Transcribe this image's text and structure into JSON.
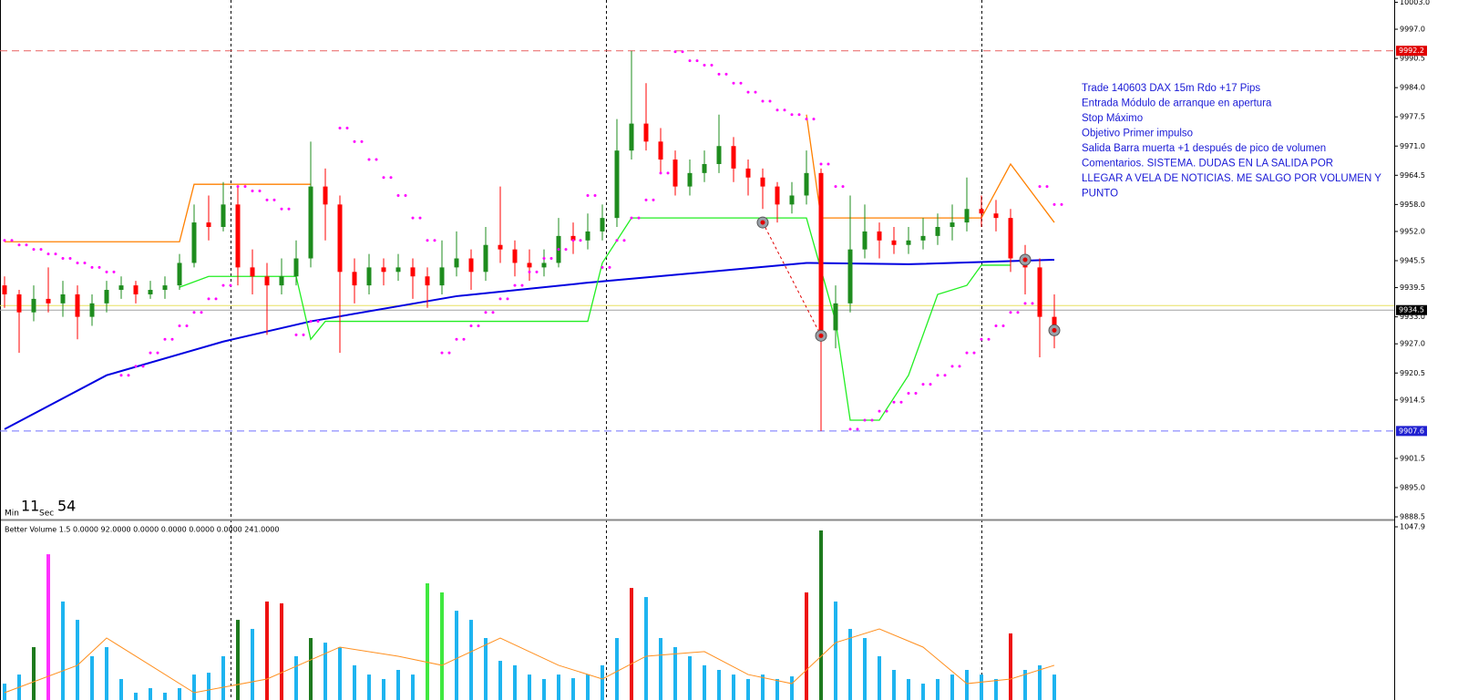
{
  "chart_data": {
    "type": "candlestick",
    "up_color": "#1e8c1e",
    "down_color": "#ff0000",
    "ylim": [
      9887.9,
      10003.5
    ],
    "yticks": [
      {
        "value": 10003,
        "label": "10003.0"
      },
      {
        "value": 9997,
        "label": "9997.0"
      },
      9990.5,
      {
        "value": 9984,
        "label": "9984.0"
      },
      9977.5,
      {
        "value": 9971,
        "label": "9971.0"
      },
      9964.5,
      {
        "value": 9958,
        "label": "9958.0"
      },
      {
        "value": 9952,
        "label": "9952.0"
      },
      9945.5,
      9939.5,
      {
        "value": 9933,
        "label": "9933.0"
      },
      {
        "value": 9927,
        "label": "9927.0"
      },
      9920.5,
      9914.5,
      9901.5,
      {
        "value": 9895,
        "label": "9895.0"
      },
      9888.5
    ],
    "ohlc": [
      [
        9940,
        9942,
        9935,
        9938
      ],
      [
        9938,
        9939,
        9925,
        9934
      ],
      [
        9934,
        9940,
        9932,
        9937
      ],
      [
        9937,
        9944,
        9934,
        9936
      ],
      [
        9936,
        9941,
        9933,
        9938
      ],
      [
        9938,
        9940,
        9928,
        9933
      ],
      [
        9933,
        9938,
        9931,
        9936
      ],
      [
        9936,
        9941,
        9934,
        9939
      ],
      [
        9939,
        9942,
        9937,
        9940
      ],
      [
        9940,
        9941,
        9936,
        9938
      ],
      [
        9938,
        9941,
        9937,
        9939
      ],
      [
        9939,
        9942,
        9937,
        9940
      ],
      [
        9940,
        9947,
        9939,
        9945
      ],
      [
        9945,
        9958,
        9944,
        9954
      ],
      [
        9954,
        9960,
        9950,
        9953
      ],
      [
        9953,
        9963,
        9952,
        9958
      ],
      [
        9958,
        9962,
        9940,
        9944
      ],
      [
        9944,
        9948,
        9938,
        9942
      ],
      [
        9942,
        9945,
        9929,
        9940
      ],
      [
        9940,
        9946,
        9938,
        9942
      ],
      [
        9942,
        9950,
        9940,
        9946
      ],
      [
        9946,
        9972,
        9944,
        9962
      ],
      [
        9962,
        9966,
        9950,
        9958
      ],
      [
        9958,
        9960,
        9925,
        9943
      ],
      [
        9943,
        9946,
        9936,
        9940
      ],
      [
        9940,
        9947,
        9938,
        9944
      ],
      [
        9944,
        9946,
        9940,
        9943
      ],
      [
        9943,
        9947,
        9941,
        9944
      ],
      [
        9944,
        9946,
        9937,
        9942
      ],
      [
        9942,
        9944,
        9935,
        9940
      ],
      [
        9940,
        9950,
        9938,
        9944
      ],
      [
        9944,
        9952,
        9942,
        9946
      ],
      [
        9946,
        9948,
        9939,
        9943
      ],
      [
        9943,
        9953,
        9941,
        9949
      ],
      [
        9949,
        9962,
        9945,
        9948
      ],
      [
        9948,
        9950,
        9942,
        9945
      ],
      [
        9945,
        9948,
        9941,
        9944
      ],
      [
        9944,
        9948,
        9942,
        9945
      ],
      [
        9945,
        9955,
        9944,
        9951
      ],
      [
        9951,
        9954,
        9947,
        9950
      ],
      [
        9950,
        9956,
        9948,
        9952
      ],
      [
        9952,
        9958,
        9950,
        9955
      ],
      [
        9955,
        9977,
        9953,
        9970
      ],
      [
        9970,
        9992.2,
        9968,
        9976
      ],
      [
        9976,
        9985,
        9970,
        9972
      ],
      [
        9972,
        9975,
        9965,
        9968
      ],
      [
        9968,
        9970,
        9960,
        9962
      ],
      [
        9962,
        9968,
        9960,
        9965
      ],
      [
        9965,
        9970,
        9963,
        9967
      ],
      [
        9967,
        9978,
        9965,
        9971
      ],
      [
        9971,
        9973,
        9963,
        9966
      ],
      [
        9966,
        9968,
        9960,
        9964
      ],
      [
        9964,
        9966,
        9957,
        9962
      ],
      [
        9962,
        9963,
        9954,
        9958
      ],
      [
        9958,
        9963,
        9956,
        9960
      ],
      [
        9960,
        9970,
        9958,
        9965
      ],
      [
        9965,
        9966,
        9907.6,
        9930
      ],
      [
        9930,
        9940,
        9926,
        9936
      ],
      [
        9936,
        9960,
        9934,
        9948
      ],
      [
        9948,
        9958,
        9946,
        9952
      ],
      [
        9952,
        9954,
        9946,
        9950
      ],
      [
        9950,
        9953,
        9947,
        9949
      ],
      [
        9949,
        9953,
        9947,
        9950
      ],
      [
        9950,
        9955,
        9948,
        9951
      ],
      [
        9951,
        9956,
        9949,
        9953
      ],
      [
        9953,
        9958,
        9950,
        9954
      ],
      [
        9954,
        9964,
        9952,
        9957
      ],
      [
        9957,
        9960,
        9953,
        9956
      ],
      [
        9956,
        9959,
        9952,
        9955
      ],
      [
        9955,
        9957,
        9943,
        9946
      ],
      [
        9946,
        9949,
        9938,
        9944
      ],
      [
        9944,
        9946,
        9924,
        9933
      ],
      [
        9933,
        9938,
        9926,
        9931
      ]
    ],
    "overlays": [
      {
        "color": "#0000e0",
        "width": 2,
        "x": [
          0,
          7,
          15,
          21,
          31,
          40,
          55,
          62,
          72
        ],
        "values": [
          9908,
          9920,
          9927.5,
          9932,
          9937.6,
          9940.6,
          9945,
          9944.7,
          9945.7
        ]
      },
      {
        "color": "#ff8000",
        "width": 1.3,
        "x": [
          0,
          12,
          13,
          15,
          21,
          22,
          55,
          56,
          58,
          67,
          69,
          72
        ],
        "values": [
          9949.7,
          9949.7,
          9962.5,
          9962.5,
          9962.5,
          null,
          9978,
          9955,
          9955,
          9955,
          9967,
          9954
        ]
      },
      {
        "color": "#22ee22",
        "width": 1.3,
        "x": [
          12,
          14,
          20,
          21,
          22,
          40,
          41,
          43,
          55,
          57,
          58,
          60,
          62,
          64,
          66,
          67,
          69
        ],
        "values": [
          9939.6,
          9942,
          9942,
          9928,
          9932,
          9932,
          9945,
          9955,
          9955,
          9932,
          9910,
          9910,
          9920,
          9938,
          9940,
          9944.5,
          9944.5
        ]
      }
    ],
    "sar": {
      "color": "#ff00ff",
      "values": [
        9950,
        9949,
        9948,
        9947,
        9946,
        9945,
        9944,
        9943,
        9920,
        9922,
        9925,
        9928,
        9931,
        9934,
        9937,
        9940,
        9962,
        9961,
        9959,
        9957,
        9929,
        9932,
        null,
        9975,
        9972,
        9968,
        9964,
        9960,
        9955,
        9950,
        9925,
        9928,
        9931,
        9934,
        9937,
        9940,
        9943,
        9946,
        9948,
        9950,
        9960,
        9944,
        9950,
        9955,
        9959,
        9965,
        9992,
        9990,
        9989,
        9987,
        9985,
        9983,
        9981,
        9979,
        9978,
        9977,
        9967,
        9962,
        9908,
        9910,
        9912,
        9914,
        9916,
        9918,
        9920,
        9922,
        9925,
        9928,
        9931,
        9934,
        9936,
        9962,
        9958
      ]
    },
    "levels": [
      {
        "value": 9992.2,
        "color": "#e86060",
        "dash": true,
        "tag": true,
        "tag_color": "#e00000"
      },
      {
        "value": 9907.6,
        "color": "#7070ff",
        "dash": true,
        "tag": true,
        "tag_color": "#2020d0"
      },
      {
        "value": 9935.5,
        "color": "#e8e060",
        "dash": false,
        "tag": false,
        "tag_color": "#e8e060"
      },
      {
        "value": 9934.5,
        "color": "#a0a0a0",
        "dash": false,
        "tag": true,
        "tag_color": "#000000"
      }
    ],
    "trades": {
      "color": "#e00000",
      "x": [
        52,
        56,
        70,
        72
      ],
      "values": [
        9954,
        9928.8,
        9945.7,
        9930
      ]
    },
    "annotation": [
      "Trade 140603 DAX 15m Rdo +17 Pips",
      "Entrada  Módulo de arranque en apertura",
      "Stop Máximo",
      "Objetivo Primer impulso",
      "Salida Barra muerta +1 después de pico de volumen",
      "Comentarios. SISTEMA. DUDAS EN LA SALIDA POR",
      "LLEGAR A VELA DE NOTICIAS. ME SALGO POR VOLUMEN Y",
      "PUNTO"
    ],
    "timer": {
      "min_label": "Min",
      "min": 11,
      "sec_label": "Sec",
      "sec": 54
    },
    "volume": {
      "title": "Better Volume 1.5 0.0000 92.0000 0.0000 0.0000 0.0000 0.0000 241.0000",
      "ylim": [
        0,
        1047.9
      ],
      "yticks": [
        1047.9
      ],
      "values": [
        99,
        154,
        320,
        882,
        596,
        485,
        265,
        320,
        127,
        44,
        72,
        44,
        72,
        154,
        165,
        265,
        485,
        430,
        596,
        585,
        265,
        375,
        347,
        320,
        210,
        154,
        127,
        182,
        154,
        706,
        651,
        540,
        485,
        375,
        237,
        210,
        154,
        127,
        154,
        132,
        154,
        210,
        375,
        678,
        623,
        375,
        320,
        265,
        210,
        182,
        154,
        127,
        154,
        127,
        143,
        651,
        1026,
        596,
        430,
        375,
        265,
        182,
        127,
        99,
        127,
        154,
        182,
        154,
        127,
        403,
        182,
        210,
        154
      ],
      "colors": [
        "#1eb4f0",
        "#1eb4f0",
        "#1e7a1e",
        "#ff30ff",
        "#1eb4f0",
        "#1eb4f0",
        "#1eb4f0",
        "#1eb4f0",
        "#1eb4f0",
        "#1eb4f0",
        "#1eb4f0",
        "#1eb4f0",
        "#1eb4f0",
        "#1eb4f0",
        "#1eb4f0",
        "#1eb4f0",
        "#1e7a1e",
        "#1eb4f0",
        "#ee1010",
        "#ee1010",
        "#1eb4f0",
        "#1e7a1e",
        "#1eb4f0",
        "#1eb4f0",
        "#1eb4f0",
        "#1eb4f0",
        "#1eb4f0",
        "#1eb4f0",
        "#1eb4f0",
        "#40e840",
        "#40e840",
        "#1eb4f0",
        "#1eb4f0",
        "#1eb4f0",
        "#1eb4f0",
        "#1eb4f0",
        "#1eb4f0",
        "#1eb4f0",
        "#1eb4f0",
        "#1eb4f0",
        "#1eb4f0",
        "#1eb4f0",
        "#1eb4f0",
        "#ee1010",
        "#1eb4f0",
        "#1eb4f0",
        "#1eb4f0",
        "#1eb4f0",
        "#1eb4f0",
        "#1eb4f0",
        "#1eb4f0",
        "#1eb4f0",
        "#1eb4f0",
        "#1eb4f0",
        "#1eb4f0",
        "#ee1010",
        "#1e7a1e",
        "#1eb4f0",
        "#1eb4f0",
        "#1eb4f0",
        "#1eb4f0",
        "#1eb4f0",
        "#1eb4f0",
        "#1eb4f0",
        "#1eb4f0",
        "#1eb4f0",
        "#1eb4f0",
        "#1eb4f0",
        "#1eb4f0",
        "#ee1010",
        "#1eb4f0",
        "#1eb4f0",
        "#1eb4f0"
      ],
      "ma": {
        "color": "#ff9020",
        "x": [
          0,
          5,
          7,
          10,
          13,
          18,
          23,
          27,
          30,
          34,
          38,
          41,
          44,
          48,
          51,
          54,
          57,
          60,
          63,
          66,
          69,
          72
        ],
        "values": [
          44,
          210,
          375,
          210,
          44,
          127,
          320,
          265,
          210,
          375,
          210,
          127,
          265,
          293,
          154,
          99,
          347,
          430,
          320,
          99,
          127,
          210
        ]
      }
    }
  }
}
